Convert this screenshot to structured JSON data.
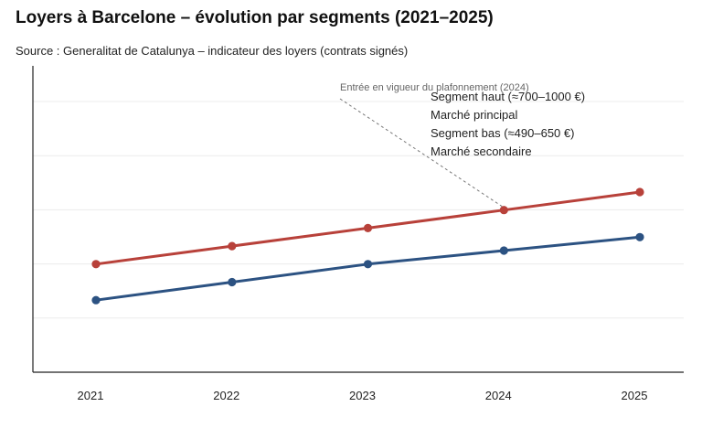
{
  "title": "Loyers à Barcelone – évolution par segments (2021–2025)",
  "subtitle": "Source : Generalitat de Catalunya – indicateur des loyers (contrats signés)",
  "chart_data": {
    "type": "line",
    "title": "Loyers à Barcelone – évolution par segments (2021–2025)",
    "subtitle": "Source : Generalitat de Catalunya – indicateur des loyers (contrats signés)",
    "x": [
      "2021",
      "2022",
      "2023",
      "2024",
      "2025"
    ],
    "xlabel": "",
    "ylabel": "",
    "y_ticks_shown": false,
    "grid": "horizontal",
    "legend_position": "top-right",
    "series": [
      {
        "name": "Segment haut (≈700–1000 €)",
        "color": "#b8413a",
        "values": [
          6,
          7,
          8,
          9,
          10
        ]
      },
      {
        "name": "Segment bas (≈490–650 €)",
        "color": "#2c5282",
        "values": [
          4,
          5,
          6,
          6.75,
          7.5
        ]
      }
    ],
    "ylim": [
      0,
      12
    ],
    "legend": [
      {
        "label": "Segment haut (≈700–1000 €)"
      },
      {
        "label": "Marché principal"
      },
      {
        "label": "Segment bas (≈490–650 €)"
      },
      {
        "label": "Marché secondaire"
      }
    ],
    "annotations": [
      {
        "text": "Entrée en vigueur du plafonnement (2024)",
        "x": "2024",
        "series": 0
      }
    ]
  }
}
